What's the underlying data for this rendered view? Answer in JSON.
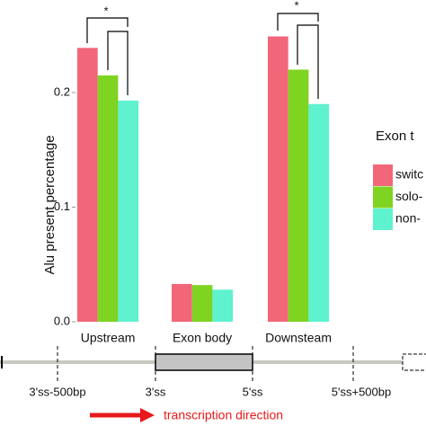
{
  "chart_data": {
    "type": "bar",
    "ylabel": "Alu present percentage",
    "categories": [
      "Upstream",
      "Exon body",
      "Downsteam"
    ],
    "series": [
      {
        "name": "switc",
        "color": "#f2667a",
        "values": [
          0.239,
          0.033,
          0.249
        ]
      },
      {
        "name": "solo-",
        "color": "#7fd321",
        "values": [
          0.215,
          0.032,
          0.22
        ]
      },
      {
        "name": "non-",
        "color": "#5ef2cf",
        "values": [
          0.193,
          0.028,
          0.19
        ]
      }
    ],
    "legend_title": "Exon t",
    "ylim": [
      0,
      0.28
    ],
    "yticks": [
      {
        "value": 0,
        "label": "0.0"
      },
      0.1,
      0.2
    ],
    "significance": [
      "*",
      "*"
    ],
    "positions": [
      "3'ss-500bp",
      "3'ss",
      "5'ss",
      "5'ss+500bp"
    ],
    "direction": "transcription direction"
  }
}
